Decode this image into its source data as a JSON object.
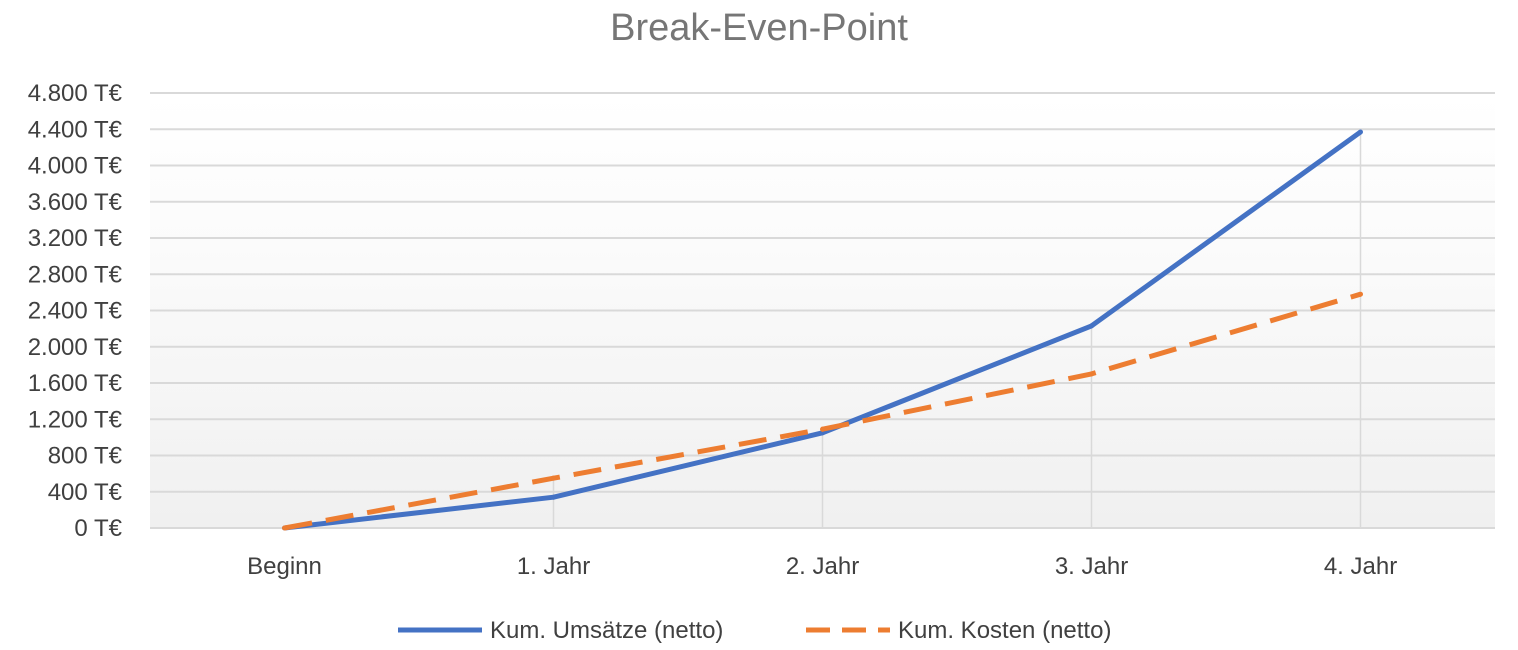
{
  "chart_data": {
    "type": "line",
    "title": "Break-Even-Point",
    "categories": [
      "Beginn",
      "1. Jahr",
      "2. Jahr",
      "3. Jahr",
      "4. Jahr"
    ],
    "ylim": [
      0,
      4800
    ],
    "ytick_values": [
      0,
      400,
      800,
      1200,
      1600,
      2000,
      2400,
      2800,
      3200,
      3600,
      4000,
      4400,
      4800
    ],
    "ytick_labels": [
      "0 T€",
      "400 T€",
      "800 T€",
      "1.200 T€",
      "1.600 T€",
      "2.000 T€",
      "2.400 T€",
      "2.800 T€",
      "3.200 T€",
      "3.600 T€",
      "4.000 T€",
      "4.400 T€",
      "4.800 T€"
    ],
    "grid": true,
    "legend_position": "bottom",
    "series": [
      {
        "name": "Kum. Umsätze (netto)",
        "values": [
          0,
          340,
          1050,
          2230,
          4370
        ],
        "color": "#4472C4",
        "style": "solid"
      },
      {
        "name": "Kum. Kosten (netto)",
        "values": [
          0,
          550,
          1090,
          1700,
          2580
        ],
        "color": "#ED7D31",
        "style": "dashed"
      }
    ]
  }
}
